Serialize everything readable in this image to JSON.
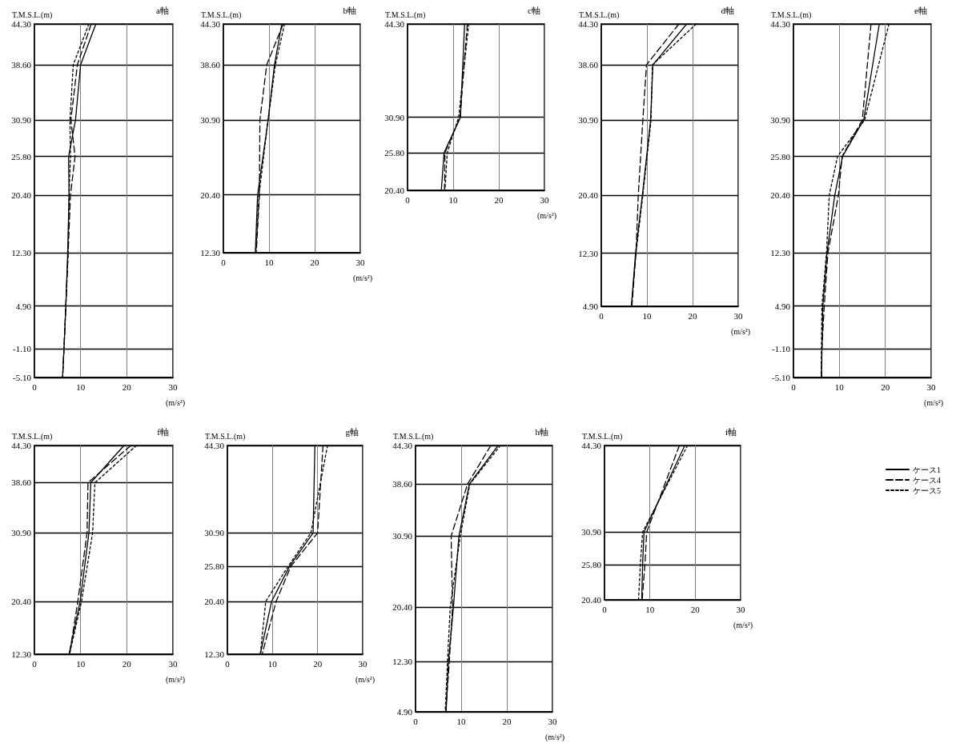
{
  "chart_data": [
    {
      "type": "line",
      "title": "a軸",
      "ylabel": "T.M.S.L.(m)",
      "xlabel": "(m/s²)",
      "xlim": [
        0,
        30
      ],
      "xticks": [
        0,
        10,
        20,
        30
      ],
      "ylim": [
        -5.1,
        44.3
      ],
      "yticks": [
        {
          "value": -5.1,
          "label": "-5.10"
        },
        {
          "value": -1.1,
          "label": "-1.10"
        },
        {
          "value": 4.9,
          "label": "4.90"
        },
        {
          "value": 12.3,
          "label": "12.30"
        },
        {
          "value": 20.4,
          "label": "20.40"
        },
        {
          "value": 25.8,
          "label": "25.80"
        },
        {
          "value": 30.9,
          "label": "30.90"
        },
        {
          "value": 38.6,
          "label": "38.60"
        },
        {
          "value": 44.3,
          "label": "44.30"
        }
      ],
      "grid": true,
      "marker": "none",
      "series": [
        {
          "color": "#000000",
          "line_style": "solid",
          "x": [
            13.3,
            10.0,
            8.9,
            7.4,
            7.5,
            7.2,
            6.8,
            6.4,
            6.1
          ],
          "values": [
            44.3,
            38.6,
            30.9,
            25.8,
            20.4,
            12.3,
            4.9,
            -1.1,
            -5.1
          ]
        },
        {
          "color": "#000000",
          "line_style": "dashed",
          "x": [
            12.3,
            9.3,
            7.9,
            8.8,
            7.8,
            7.3,
            6.8,
            6.4,
            6.1
          ],
          "values": [
            44.3,
            38.6,
            30.9,
            25.8,
            20.4,
            12.3,
            4.9,
            -1.1,
            -5.1
          ]
        },
        {
          "color": "#000000",
          "line_style": "dotted",
          "x": [
            11.8,
            8.4,
            7.7,
            7.8,
            7.5,
            7.3,
            6.8,
            6.4,
            6.1
          ],
          "values": [
            44.3,
            38.6,
            30.9,
            25.8,
            20.4,
            12.3,
            4.9,
            -1.1,
            -5.1
          ]
        }
      ]
    },
    {
      "type": "line",
      "title": "b軸",
      "ylabel": "T.M.S.L.(m)",
      "xlabel": "(m/s²)",
      "xlim": [
        0,
        30
      ],
      "xticks": [
        0,
        10,
        20,
        30
      ],
      "ylim": [
        12.3,
        44.3
      ],
      "yticks": [
        {
          "value": 12.3,
          "label": "12.30"
        },
        {
          "value": 20.4,
          "label": "20.40"
        },
        {
          "value": 30.9,
          "label": "30.90"
        },
        {
          "value": 38.6,
          "label": "38.60"
        },
        {
          "value": 44.3,
          "label": "44.30"
        }
      ],
      "grid": true,
      "marker": "none",
      "series": [
        {
          "color": "#000000",
          "line_style": "solid",
          "x": [
            12.8,
            11.2,
            9.8,
            7.5,
            7.0
          ],
          "values": [
            44.3,
            38.6,
            30.9,
            20.4,
            12.3
          ]
        },
        {
          "color": "#000000",
          "line_style": "dashed",
          "x": [
            13.1,
            9.5,
            8.0,
            7.9,
            7.2
          ],
          "values": [
            44.3,
            38.6,
            30.9,
            20.4,
            12.3
          ]
        },
        {
          "color": "#000000",
          "line_style": "dotted",
          "x": [
            13.4,
            11.4,
            9.8,
            7.8,
            7.1
          ],
          "values": [
            44.3,
            38.6,
            30.9,
            20.4,
            12.3
          ]
        }
      ]
    },
    {
      "type": "line",
      "title": "c軸",
      "ylabel": "T.M.S.L.(m)",
      "xlabel": "(m/s²)",
      "xlim": [
        0,
        30
      ],
      "xticks": [
        0,
        10,
        20,
        30
      ],
      "ylim": [
        20.4,
        44.3
      ],
      "yticks": [
        {
          "value": 20.4,
          "label": "20.40"
        },
        {
          "value": 25.8,
          "label": "25.80"
        },
        {
          "value": 30.9,
          "label": "30.90"
        },
        {
          "value": 44.3,
          "label": "44.30"
        }
      ],
      "grid": true,
      "marker": "none",
      "series": [
        {
          "color": "#000000",
          "line_style": "solid",
          "x": [
            12.5,
            11.6,
            8.0,
            7.4
          ],
          "values": [
            44.3,
            30.9,
            25.8,
            20.4
          ]
        },
        {
          "color": "#000000",
          "line_style": "dashed",
          "x": [
            13.1,
            11.5,
            8.2,
            8.1
          ],
          "values": [
            44.3,
            30.9,
            25.8,
            20.4
          ]
        },
        {
          "color": "#000000",
          "line_style": "dotted",
          "x": [
            13.4,
            11.2,
            8.7,
            8.2
          ],
          "values": [
            44.3,
            30.9,
            25.8,
            20.4
          ]
        }
      ]
    },
    {
      "type": "line",
      "title": "d軸",
      "ylabel": "T.M.S.L.(m)",
      "xlabel": "(m/s²)",
      "xlim": [
        0,
        30
      ],
      "xticks": [
        0,
        10,
        20,
        30
      ],
      "ylim": [
        4.9,
        44.3
      ],
      "yticks": [
        {
          "value": 4.9,
          "label": "4.90"
        },
        {
          "value": 12.3,
          "label": "12.30"
        },
        {
          "value": 20.4,
          "label": "20.40"
        },
        {
          "value": 30.9,
          "label": "30.90"
        },
        {
          "value": 38.6,
          "label": "38.60"
        },
        {
          "value": 44.3,
          "label": "44.30"
        }
      ],
      "grid": true,
      "marker": "none",
      "series": [
        {
          "color": "#000000",
          "line_style": "solid",
          "x": [
            18.7,
            11.3,
            10.8,
            9.0,
            7.5,
            6.6
          ],
          "values": [
            44.3,
            38.6,
            30.9,
            20.4,
            12.3,
            4.9
          ]
        },
        {
          "color": "#000000",
          "line_style": "dashed",
          "x": [
            17.0,
            9.9,
            9.1,
            8.1,
            7.6,
            6.7
          ],
          "values": [
            44.3,
            38.6,
            30.9,
            20.4,
            12.3,
            4.9
          ]
        },
        {
          "color": "#000000",
          "line_style": "dotted",
          "x": [
            20.8,
            11.2,
            10.9,
            9.1,
            7.6,
            6.6
          ],
          "values": [
            44.3,
            38.6,
            30.9,
            20.4,
            12.3,
            4.9
          ]
        }
      ]
    },
    {
      "type": "line",
      "title": "e軸",
      "ylabel": "T.M.S.L.(m)",
      "xlabel": "(m/s²)",
      "xlim": [
        0,
        30
      ],
      "xticks": [
        0,
        10,
        20,
        30
      ],
      "ylim": [
        -5.1,
        44.3
      ],
      "yticks": [
        {
          "value": -5.1,
          "label": "-5.10"
        },
        {
          "value": -1.1,
          "label": "-1.10"
        },
        {
          "value": 4.9,
          "label": "4.90"
        },
        {
          "value": 12.3,
          "label": "12.30"
        },
        {
          "value": 20.4,
          "label": "20.40"
        },
        {
          "value": 25.8,
          "label": "25.80"
        },
        {
          "value": 30.9,
          "label": "30.90"
        },
        {
          "value": 44.3,
          "label": "44.30"
        }
      ],
      "grid": true,
      "marker": "none",
      "series": [
        {
          "color": "#000000",
          "line_style": "solid",
          "x": [
            18.7,
            15.3,
            10.7,
            9.0,
            7.3,
            6.4,
            6.2,
            6.1
          ],
          "values": [
            44.3,
            30.9,
            25.8,
            20.4,
            12.3,
            4.9,
            -1.1,
            -5.1
          ]
        },
        {
          "color": "#000000",
          "line_style": "dashed",
          "x": [
            16.9,
            15.0,
            10.6,
            9.8,
            7.5,
            6.7,
            6.2,
            6.1
          ],
          "values": [
            44.3,
            30.9,
            25.8,
            20.4,
            12.3,
            4.9,
            -1.1,
            -5.1
          ]
        },
        {
          "color": "#000000",
          "line_style": "dotted",
          "x": [
            20.8,
            15.5,
            9.6,
            7.8,
            7.2,
            6.2,
            6.1,
            6.1
          ],
          "values": [
            44.3,
            30.9,
            25.8,
            20.4,
            12.3,
            4.9,
            -1.1,
            -5.1
          ]
        }
      ]
    },
    {
      "type": "line",
      "title": "f軸",
      "ylabel": "T.M.S.L.(m)",
      "xlabel": "(m/s²)",
      "xlim": [
        0,
        30
      ],
      "xticks": [
        0,
        10,
        20,
        30
      ],
      "ylim": [
        12.3,
        44.3
      ],
      "yticks": [
        {
          "value": 12.3,
          "label": "12.30"
        },
        {
          "value": 20.4,
          "label": "20.40"
        },
        {
          "value": 30.9,
          "label": "30.90"
        },
        {
          "value": 38.6,
          "label": "38.60"
        },
        {
          "value": 44.3,
          "label": "44.30"
        }
      ],
      "grid": true,
      "marker": "none",
      "series": [
        {
          "color": "#000000",
          "line_style": "solid",
          "x": [
            19.4,
            12.2,
            11.8,
            9.9,
            7.5
          ],
          "values": [
            44.3,
            38.6,
            30.9,
            20.4,
            12.3
          ]
        },
        {
          "color": "#000000",
          "line_style": "dashed",
          "x": [
            20.9,
            11.6,
            11.4,
            9.4,
            7.6
          ],
          "values": [
            44.3,
            38.6,
            30.9,
            20.4,
            12.3
          ]
        },
        {
          "color": "#000000",
          "line_style": "dotted",
          "x": [
            22.1,
            13.1,
            12.6,
            10.2,
            7.6
          ],
          "values": [
            44.3,
            38.6,
            30.9,
            20.4,
            12.3
          ]
        }
      ]
    },
    {
      "type": "line",
      "title": "g軸",
      "ylabel": "T.M.S.L.(m)",
      "xlabel": "(m/s²)",
      "xlim": [
        0,
        30
      ],
      "xticks": [
        0,
        10,
        20,
        30
      ],
      "ylim": [
        12.3,
        44.3
      ],
      "yticks": [
        {
          "value": 12.3,
          "label": "12.30"
        },
        {
          "value": 20.4,
          "label": "20.40"
        },
        {
          "value": 25.8,
          "label": "25.80"
        },
        {
          "value": 30.9,
          "label": "30.90"
        },
        {
          "value": 44.3,
          "label": "44.30"
        }
      ],
      "grid": true,
      "marker": "none",
      "series": [
        {
          "color": "#000000",
          "line_style": "solid",
          "x": [
            19.4,
            19.0,
            13.8,
            9.8,
            7.3
          ],
          "values": [
            44.3,
            30.9,
            25.8,
            20.4,
            12.3
          ]
        },
        {
          "color": "#000000",
          "line_style": "dashed",
          "x": [
            21.2,
            20.0,
            14.1,
            10.8,
            7.7
          ],
          "values": [
            44.3,
            30.9,
            25.8,
            20.4,
            12.3
          ]
        },
        {
          "color": "#000000",
          "line_style": "dotted",
          "x": [
            22.2,
            18.5,
            13.5,
            8.5,
            7.3
          ],
          "values": [
            44.3,
            30.9,
            25.8,
            20.4,
            12.3
          ]
        }
      ]
    },
    {
      "type": "line",
      "title": "h軸",
      "ylabel": "T.M.S.L.(m)",
      "xlabel": "(m/s²)",
      "xlim": [
        0,
        30
      ],
      "xticks": [
        0,
        10,
        20,
        30
      ],
      "ylim": [
        4.9,
        44.3
      ],
      "yticks": [
        {
          "value": 4.9,
          "label": "4.90"
        },
        {
          "value": 12.3,
          "label": "12.30"
        },
        {
          "value": 20.4,
          "label": "20.40"
        },
        {
          "value": 30.9,
          "label": "30.90"
        },
        {
          "value": 38.6,
          "label": "38.60"
        },
        {
          "value": 44.3,
          "label": "44.30"
        }
      ],
      "grid": true,
      "marker": "none",
      "series": [
        {
          "color": "#000000",
          "line_style": "solid",
          "x": [
            18.1,
            11.8,
            9.5,
            8.3,
            7.2,
            6.7
          ],
          "values": [
            44.3,
            38.6,
            30.9,
            20.4,
            12.3,
            4.9
          ]
        },
        {
          "color": "#000000",
          "line_style": "dashed",
          "x": [
            16.5,
            11.4,
            7.8,
            8.1,
            7.4,
            6.6
          ],
          "values": [
            44.3,
            38.6,
            30.9,
            20.4,
            12.3,
            4.9
          ]
        },
        {
          "color": "#000000",
          "line_style": "dotted",
          "x": [
            18.6,
            11.9,
            9.8,
            7.6,
            7.0,
            6.5
          ],
          "values": [
            44.3,
            38.6,
            30.9,
            20.4,
            12.3,
            4.9
          ]
        }
      ]
    },
    {
      "type": "line",
      "title": "i軸",
      "ylabel": "T.M.S.L.(m)",
      "xlabel": "(m/s²)",
      "xlim": [
        0,
        30
      ],
      "xticks": [
        0,
        10,
        20,
        30
      ],
      "ylim": [
        20.4,
        44.3
      ],
      "yticks": [
        {
          "value": 20.4,
          "label": "20.40"
        },
        {
          "value": 25.8,
          "label": "25.80"
        },
        {
          "value": 30.9,
          "label": "30.90"
        },
        {
          "value": 44.3,
          "label": "44.30"
        }
      ],
      "grid": true,
      "marker": "none",
      "legend": "right",
      "series": [
        {
          "name": "ケース1",
          "color": "#000000",
          "line_style": "solid",
          "x": [
            17.7,
            8.7,
            8.4,
            8.2
          ],
          "values": [
            44.3,
            30.9,
            25.8,
            20.4
          ]
        },
        {
          "name": "ケース4",
          "color": "#000000",
          "line_style": "dashed",
          "x": [
            16.5,
            9.3,
            8.9,
            8.3
          ],
          "values": [
            44.3,
            30.9,
            25.8,
            20.4
          ]
        },
        {
          "name": "ケース5",
          "color": "#000000",
          "line_style": "dotted",
          "x": [
            18.3,
            8.4,
            7.9,
            7.5
          ],
          "values": [
            44.3,
            30.9,
            25.8,
            20.4
          ]
        }
      ]
    }
  ]
}
